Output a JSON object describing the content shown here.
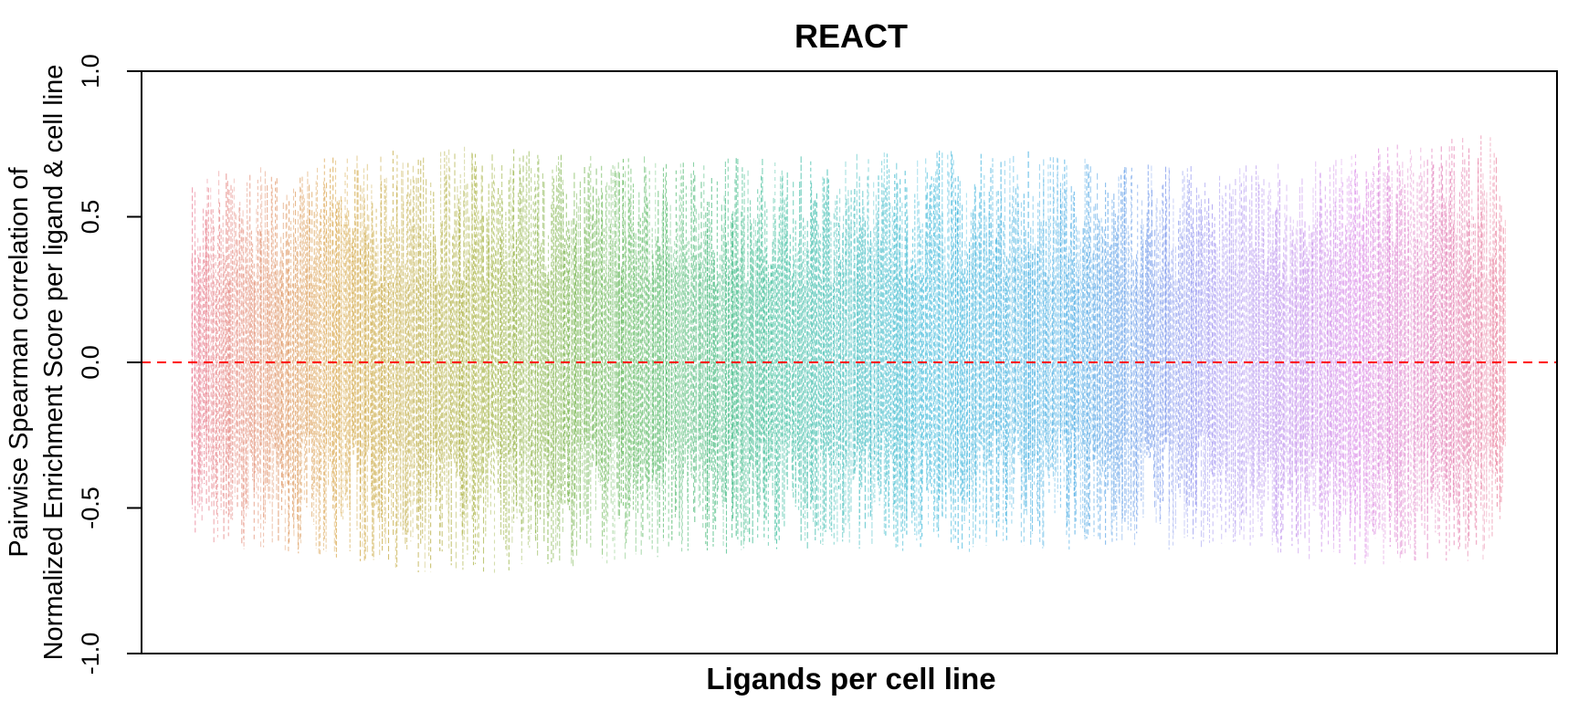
{
  "chart_data": {
    "type": "line",
    "title": "REACT",
    "xlabel": "Ligands per cell line",
    "ylabel_line1": "Pairwise Spearman correlation of",
    "ylabel_line2": "Normalized Enrichment Score per ligand & cell line",
    "ylim": [
      -1.0,
      1.0
    ],
    "yticks": [
      -1.0,
      -0.5,
      0.0,
      0.5,
      1.0
    ],
    "ytick_labels": [
      "-1.0",
      "-0.5",
      "0.0",
      "0.5",
      "1.0"
    ],
    "xticks_shown": false,
    "grid": false,
    "legend": "none",
    "reference_line": {
      "y": 0.0,
      "style": "dashed",
      "color": "#ff0000"
    },
    "series_description": "dense dashed vertical segments per ligand, coloured by cell line in a rainbow hue gradient",
    "color_stops": [
      "#e8718d",
      "#d39a2e",
      "#9aa92a",
      "#4db04a",
      "#1fb48c",
      "#22b0d4",
      "#2ea0e0",
      "#9a8cf0",
      "#d982e6",
      "#e8718d"
    ],
    "envelope": {
      "x_fraction": [
        0.0,
        0.1,
        0.2,
        0.3,
        0.4,
        0.5,
        0.6,
        0.7,
        0.8,
        0.9,
        1.0
      ],
      "upper": [
        0.65,
        0.72,
        0.75,
        0.72,
        0.7,
        0.72,
        0.75,
        0.7,
        0.68,
        0.74,
        0.8
      ],
      "lower": [
        -0.62,
        -0.68,
        -0.74,
        -0.7,
        -0.66,
        -0.64,
        -0.66,
        -0.64,
        -0.66,
        -0.7,
        -0.68
      ]
    }
  }
}
